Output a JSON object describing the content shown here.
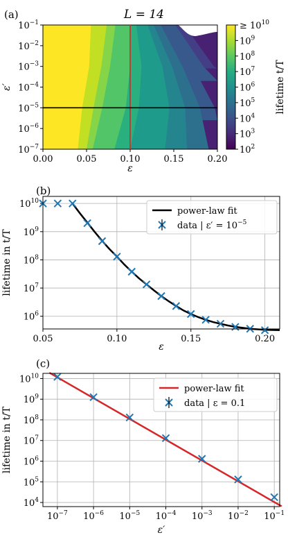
{
  "panels": {
    "a": {
      "label": "(a)",
      "title": "L = 14"
    },
    "b": {
      "label": "(b)"
    },
    "c": {
      "label": "(c)"
    }
  },
  "chart_data": [
    {
      "type": "heatmap",
      "title": "L = 14",
      "xlabel": "ε",
      "ylabel": "ε′",
      "xlim": [
        0.0,
        0.2
      ],
      "ylim_log10": [
        -7,
        -1
      ],
      "y_scale": "log",
      "x_ticks": [
        "0.00",
        "0.05",
        "0.10",
        "0.15",
        "0.20"
      ],
      "y_ticks": [
        "10^-7",
        "10^-6",
        "10^-5",
        "10^-4",
        "10^-3",
        "10^-2",
        "10^-1"
      ],
      "colorbar": {
        "label": "lifetime t/T",
        "scale": "log",
        "range_log10": [
          2,
          10
        ],
        "ticks": [
          "10^2",
          "10^3",
          "10^4",
          "10^5",
          "10^6",
          "10^7",
          "10^8",
          "10^9",
          "≥ 10^10"
        ],
        "colormap": "viridis"
      },
      "cuts": [
        {
          "orientation": "vertical",
          "at_x": 0.1,
          "color": "#d62728"
        },
        {
          "orientation": "horizontal",
          "at_y": 1e-05,
          "color": "#000000"
        }
      ],
      "contour_boundaries_log10_lifetime": [
        {
          "level": 10,
          "points": [
            [
              0.055,
              -1
            ],
            [
              0.053,
              -3
            ],
            [
              0.045,
              -5
            ],
            [
              0.04,
              -7
            ]
          ]
        },
        {
          "level": 9.5,
          "points": [
            [
              0.065,
              -1
            ],
            [
              0.058,
              -3
            ],
            [
              0.05,
              -5
            ],
            [
              0.045,
              -7
            ]
          ]
        },
        {
          "level": 9,
          "points": [
            [
              0.073,
              -1
            ],
            [
              0.067,
              -3
            ],
            [
              0.058,
              -5
            ],
            [
              0.05,
              -7
            ]
          ]
        },
        {
          "level": 8.5,
          "points": [
            [
              0.083,
              -1
            ],
            [
              0.077,
              -3
            ],
            [
              0.068,
              -5
            ],
            [
              0.057,
              -7
            ]
          ]
        },
        {
          "level": 8,
          "points": [
            [
              0.092,
              -1
            ],
            [
              0.088,
              -3
            ],
            [
              0.08,
              -5
            ],
            [
              0.068,
              -7
            ]
          ]
        },
        {
          "level": 7.5,
          "points": [
            [
              0.1,
              -1
            ],
            [
              0.1,
              -3
            ],
            [
              0.095,
              -5
            ],
            [
              0.082,
              -7
            ]
          ]
        },
        {
          "level": 7,
          "points": [
            [
              0.107,
              -1
            ],
            [
              0.113,
              -3
            ],
            [
              0.11,
              -5
            ],
            [
              0.1,
              -7
            ]
          ]
        },
        {
          "level": 6.5,
          "points": [
            [
              0.113,
              -1
            ],
            [
              0.125,
              -3
            ],
            [
              0.128,
              -5
            ],
            [
              0.12,
              -7
            ]
          ]
        },
        {
          "level": 6,
          "points": [
            [
              0.12,
              -1
            ],
            [
              0.137,
              -3
            ],
            [
              0.145,
              -5
            ],
            [
              0.14,
              -7
            ]
          ]
        },
        {
          "level": 5.5,
          "points": [
            [
              0.127,
              -1
            ],
            [
              0.148,
              -3
            ],
            [
              0.163,
              -5
            ],
            [
              0.165,
              -7
            ]
          ]
        },
        {
          "level": 5,
          "points": [
            [
              0.135,
              -1
            ],
            [
              0.16,
              -3
            ],
            [
              0.18,
              -5
            ],
            [
              0.19,
              -7
            ]
          ]
        },
        {
          "level": 4.5,
          "points": [
            [
              0.143,
              -1
            ],
            [
              0.172,
              -3
            ],
            [
              0.197,
              -5
            ],
            [
              0.2,
              -5.6
            ]
          ]
        },
        {
          "level": 4,
          "points": [
            [
              0.152,
              -1
            ],
            [
              0.184,
              -3
            ],
            [
              0.2,
              -3.7
            ]
          ]
        },
        {
          "level": 3.5,
          "points": [
            [
              0.162,
              -1
            ],
            [
              0.196,
              -3
            ],
            [
              0.2,
              -3.1
            ]
          ]
        },
        {
          "level": 3,
          "points": [
            [
              0.172,
              -1
            ],
            [
              0.2,
              -2.2
            ]
          ]
        }
      ]
    },
    {
      "type": "scatter",
      "xlabel": "ε",
      "ylabel": "lifetime in t/T",
      "xlim": [
        0.05,
        0.21
      ],
      "ylim_log10": [
        5.55,
        10.25
      ],
      "y_scale": "log",
      "grid": true,
      "legend_position": "top-right",
      "x_ticks": [
        "0.05",
        "0.10",
        "0.15",
        "0.20"
      ],
      "y_ticks": [
        "10^6",
        "10^7",
        "10^8",
        "10^9",
        "10^10"
      ],
      "series": [
        {
          "name": "data | ε′ = 10^-5",
          "kind": "markers",
          "color": "#1f77b4",
          "x": [
            0.05,
            0.06,
            0.07,
            0.08,
            0.09,
            0.1,
            0.11,
            0.12,
            0.13,
            0.14,
            0.15,
            0.16,
            0.17,
            0.18,
            0.19,
            0.2
          ],
          "y": [
            10000000000.0,
            10000000000.0,
            10000000000.0,
            2000000000.0,
            460000000.0,
            130000000.0,
            38000000.0,
            13500000.0,
            5200000.0,
            2300000.0,
            1200000.0,
            750000.0,
            540000.0,
            420000.0,
            360000.0,
            320000.0
          ]
        },
        {
          "name": "power-law fit",
          "kind": "line",
          "color": "#000000",
          "x": [
            0.07,
            0.075,
            0.08,
            0.085,
            0.09,
            0.095,
            0.1,
            0.105,
            0.11,
            0.115,
            0.12,
            0.125,
            0.13,
            0.135,
            0.14,
            0.145,
            0.15,
            0.155,
            0.16,
            0.165,
            0.17,
            0.175,
            0.18,
            0.19,
            0.2,
            0.21
          ],
          "y": [
            10000000000.0,
            4500000000.0,
            2100000000.0,
            980000000.0,
            470000000.0,
            240000000.0,
            130000000.0,
            68000000.0,
            38000000.0,
            22000000.0,
            13500000.0,
            8300000.0,
            5200000.0,
            3400000.0,
            2300000.0,
            1600000.0,
            1200000.0,
            930000.0,
            750000.0,
            620000.0,
            540000.0,
            470000.0,
            420000.0,
            360000.0,
            330000.0,
            320000.0
          ]
        }
      ]
    },
    {
      "type": "scatter",
      "xlabel": "ε′",
      "ylabel": "lifetime in t/T",
      "x_scale": "log",
      "y_scale": "log",
      "xlim_log10": [
        -7.4,
        -0.85
      ],
      "ylim_log10": [
        3.8,
        10.25
      ],
      "grid": true,
      "legend_position": "top-right",
      "x_ticks": [
        "10^-7",
        "10^-6",
        "10^-5",
        "10^-4",
        "10^-3",
        "10^-2",
        "10^-1"
      ],
      "y_ticks": [
        "10^4",
        "10^5",
        "10^6",
        "10^7",
        "10^8",
        "10^9",
        "10^10"
      ],
      "series": [
        {
          "name": "data | ε = 0.1",
          "kind": "markers",
          "color": "#1f77b4",
          "x": [
            1e-07,
            1e-06,
            1e-05,
            0.0001,
            0.001,
            0.01,
            0.1
          ],
          "y": [
            12000000000.0,
            1250000000.0,
            130000000.0,
            13000000.0,
            1300000.0,
            130000.0,
            18000.0
          ]
        },
        {
          "name": "power-law fit",
          "kind": "line",
          "color": "#d62728",
          "x": [
            6e-08,
            0.16
          ],
          "y": [
            19000000000.0,
            6500.0
          ]
        }
      ]
    }
  ]
}
